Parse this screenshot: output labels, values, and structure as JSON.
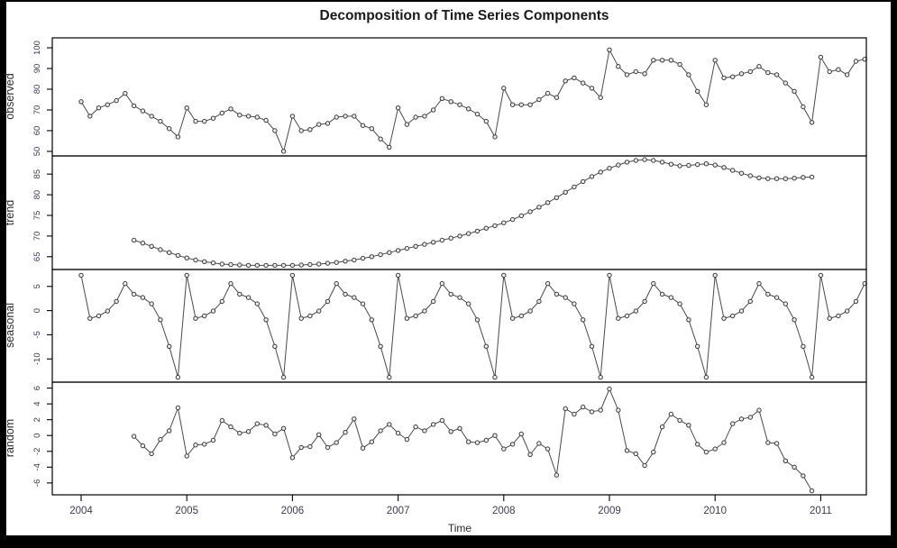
{
  "figure": {
    "title": "Decomposition of Time Series Components",
    "xlabel": "Time",
    "background": "#ffffff",
    "border_color": "#000000",
    "line_color": "#4a4a4a",
    "marker_stroke": "#3a3a3a",
    "marker_fill": "#ededed",
    "text_color": "#2b2b2b",
    "tick_label_color": "#3c3c50"
  },
  "x_axis": {
    "label": "Time",
    "ticks": [
      2004,
      2005,
      2006,
      2007,
      2008,
      2009,
      2010,
      2011
    ],
    "range": [
      2003.74,
      2011.45
    ],
    "frequency": "monthly"
  },
  "chart_data": [
    {
      "type": "line",
      "name": "observed",
      "ylabel": "observed",
      "y_ticks": [
        50,
        60,
        70,
        80,
        90,
        100
      ],
      "ylim": [
        47.8,
        104.8
      ],
      "start": 2004.0,
      "values": [
        74,
        67,
        71,
        72.5,
        74.5,
        78,
        72,
        69.5,
        67,
        64.5,
        61,
        57,
        71,
        64.5,
        64.5,
        66,
        68.5,
        70.5,
        67.5,
        67,
        66.5,
        65,
        60,
        50,
        67,
        60,
        60.5,
        63,
        63.5,
        66.5,
        67,
        67,
        62.5,
        61,
        56,
        52,
        71,
        63,
        66.5,
        67,
        70,
        75.5,
        74,
        72.5,
        70.5,
        68,
        64.5,
        57,
        80.5,
        72.5,
        72.5,
        72.5,
        75,
        78,
        76,
        84,
        85.5,
        83,
        80.5,
        76,
        99,
        91,
        87,
        88.5,
        87.5,
        94,
        94,
        94,
        92,
        87,
        79,
        72.5,
        94,
        85.5,
        86,
        87.5,
        88.5,
        91,
        88,
        87,
        83,
        79,
        71.5,
        64,
        95.5,
        88.5,
        89.5,
        87,
        93.5,
        94.5
      ]
    },
    {
      "type": "line",
      "name": "trend",
      "ylabel": "trend",
      "y_ticks": [
        65,
        70,
        75,
        80,
        85
      ],
      "ylim": [
        61.9,
        89.4
      ],
      "start": 2004.5,
      "values": [
        69.0,
        68.3,
        67.5,
        66.7,
        66.0,
        65.3,
        64.7,
        64.2,
        63.8,
        63.5,
        63.2,
        63.1,
        63.0,
        62.9,
        62.9,
        62.9,
        62.9,
        62.9,
        62.9,
        63.0,
        63.1,
        63.2,
        63.4,
        63.6,
        63.9,
        64.2,
        64.6,
        65.0,
        65.5,
        66.0,
        66.5,
        67.0,
        67.5,
        68.0,
        68.5,
        69.0,
        69.5,
        70.0,
        70.6,
        71.2,
        71.9,
        72.5,
        73.2,
        74.0,
        74.9,
        75.9,
        77.0,
        78.1,
        79.3,
        80.6,
        81.9,
        83.2,
        84.4,
        85.5,
        86.4,
        87.2,
        87.9,
        88.3,
        88.5,
        88.3,
        87.9,
        87.4,
        87.0,
        87.1,
        87.3,
        87.5,
        87.2,
        86.6,
        85.9,
        85.2,
        84.6,
        84.1,
        83.9,
        83.9,
        83.9,
        84.0,
        84.2,
        84.3
      ]
    },
    {
      "type": "line",
      "name": "seasonal",
      "ylabel": "seasonal",
      "y_ticks": [
        -10,
        -5,
        0,
        5
      ],
      "ylim": [
        -14.8,
        8.5
      ],
      "start": 2004.0,
      "n_points": 90,
      "seasonal_pattern": [
        7.3,
        -1.6,
        -1.1,
        -0.1,
        1.9,
        5.6,
        3.4,
        2.7,
        1.4,
        -1.9,
        -7.4,
        -13.8
      ]
    },
    {
      "type": "line",
      "name": "random",
      "ylabel": "random",
      "y_ticks": [
        -6,
        -4,
        -2,
        0,
        2,
        4,
        6
      ],
      "ylim": [
        -7.5,
        6.75
      ],
      "start": 2004.5,
      "values": [
        -0.1,
        -1.3,
        -2.3,
        -0.5,
        0.6,
        3.5,
        -2.6,
        -1.2,
        -1.1,
        -0.6,
        1.9,
        1.1,
        0.3,
        0.5,
        1.5,
        1.3,
        0.2,
        0.9,
        -2.8,
        -1.5,
        -1.4,
        0.1,
        -1.5,
        -0.9,
        0.4,
        2.1,
        -1.6,
        -0.8,
        0.6,
        1.4,
        0.3,
        -0.5,
        1.1,
        0.6,
        1.4,
        1.9,
        0.5,
        0.9,
        -0.8,
        -0.9,
        -0.6,
        0.0,
        -1.7,
        -1.1,
        0.2,
        -2.4,
        -1.0,
        -1.7,
        -5.0,
        3.4,
        2.7,
        3.6,
        3.0,
        3.2,
        5.9,
        3.2,
        -1.9,
        -2.3,
        -3.8,
        -2.1,
        1.1,
        2.7,
        1.9,
        1.3,
        -1.1,
        -2.1,
        -1.7,
        -0.9,
        1.5,
        2.1,
        2.3,
        3.2,
        -0.9,
        -1.0,
        -3.2,
        -4.0,
        -5.1,
        -7.0
      ]
    }
  ]
}
